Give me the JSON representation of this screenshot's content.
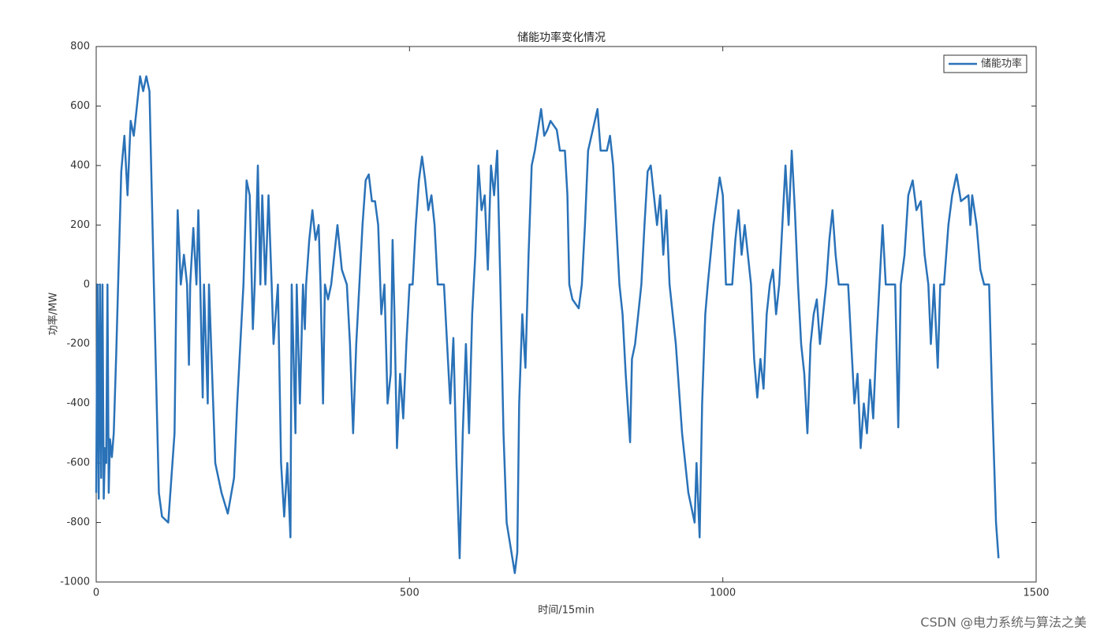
{
  "chart_data": {
    "type": "line",
    "title": "储能功率变化情况",
    "xlabel": "时间/15min",
    "ylabel": "功率/MW",
    "xlim": [
      0,
      1500
    ],
    "xticks": [
      0,
      500,
      1000,
      1500
    ],
    "ylim": [
      -1000,
      800
    ],
    "yticks": [
      -1000,
      -800,
      -600,
      -400,
      -200,
      0,
      200,
      400,
      600,
      800
    ],
    "legend": "top-right",
    "watermark": "CSDN @电力系统与算法之美",
    "series": [
      {
        "name": "储能功率",
        "color": "#2a72b8",
        "x": [
          0,
          2,
          4,
          6,
          8,
          10,
          12,
          14,
          16,
          18,
          20,
          22,
          25,
          28,
          32,
          35,
          40,
          45,
          50,
          55,
          60,
          65,
          70,
          75,
          80,
          85,
          92,
          100,
          105,
          115,
          125,
          128,
          130,
          135,
          140,
          145,
          148,
          150,
          155,
          160,
          163,
          166,
          170,
          172,
          178,
          180,
          190,
          200,
          210,
          220,
          225,
          235,
          240,
          245,
          250,
          253,
          258,
          262,
          265,
          270,
          275,
          280,
          283,
          290,
          295,
          300,
          305,
          310,
          312,
          318,
          320,
          325,
          330,
          333,
          335,
          340,
          345,
          350,
          355,
          358,
          362,
          365,
          370,
          375,
          380,
          385,
          392,
          400,
          405,
          410,
          415,
          420,
          425,
          430,
          435,
          440,
          445,
          450,
          455,
          460,
          465,
          470,
          473,
          476,
          480,
          485,
          490,
          495,
          500,
          505,
          510,
          515,
          520,
          525,
          530,
          535,
          540,
          545,
          555,
          560,
          565,
          570,
          575,
          580,
          585,
          590,
          595,
          600,
          605,
          610,
          615,
          620,
          625,
          630,
          635,
          640,
          645,
          650,
          655,
          668,
          672,
          675,
          680,
          685,
          690,
          695,
          700,
          710,
          715,
          720,
          725,
          735,
          740,
          748,
          752,
          755,
          760,
          770,
          775,
          780,
          785,
          800,
          805,
          815,
          820,
          825,
          830,
          835,
          840,
          845,
          852,
          855,
          860,
          865,
          870,
          875,
          880,
          885,
          890,
          895,
          900,
          905,
          910,
          915,
          925,
          935,
          945,
          955,
          958,
          963,
          967,
          972,
          976,
          985,
          995,
          1000,
          1005,
          1015,
          1020,
          1025,
          1030,
          1035,
          1045,
          1050,
          1055,
          1060,
          1065,
          1070,
          1075,
          1080,
          1085,
          1090,
          1095,
          1100,
          1105,
          1110,
          1115,
          1120,
          1125,
          1130,
          1135,
          1140,
          1145,
          1150,
          1155,
          1165,
          1170,
          1175,
          1180,
          1185,
          1200,
          1205,
          1210,
          1215,
          1220,
          1225,
          1230,
          1235,
          1240,
          1245,
          1250,
          1255,
          1260,
          1275,
          1280,
          1284,
          1290,
          1296,
          1303,
          1309,
          1316,
          1322,
          1328,
          1332,
          1337,
          1343,
          1347,
          1353,
          1360,
          1366,
          1373,
          1380,
          1392,
          1395,
          1398,
          1405,
          1411,
          1417,
          1425,
          1430,
          1436,
          1440
        ],
        "values": [
          -700,
          0,
          -720,
          0,
          -650,
          0,
          -720,
          -550,
          -600,
          0,
          -700,
          -520,
          -580,
          -500,
          -230,
          0,
          380,
          500,
          300,
          550,
          500,
          600,
          700,
          650,
          700,
          650,
          0,
          -700,
          -780,
          -800,
          -500,
          0,
          250,
          0,
          100,
          0,
          -270,
          0,
          190,
          0,
          250,
          0,
          -380,
          0,
          -400,
          0,
          -600,
          -700,
          -770,
          -650,
          -400,
          0,
          350,
          300,
          -150,
          0,
          400,
          0,
          300,
          0,
          300,
          0,
          -200,
          0,
          -600,
          -780,
          -600,
          -850,
          0,
          -500,
          0,
          -400,
          0,
          -150,
          0,
          150,
          250,
          150,
          200,
          0,
          -400,
          0,
          -50,
          0,
          100,
          200,
          50,
          0,
          -200,
          -500,
          -200,
          0,
          200,
          350,
          370,
          280,
          280,
          200,
          -100,
          0,
          -400,
          -300,
          150,
          -100,
          -550,
          -300,
          -450,
          -200,
          0,
          0,
          200,
          350,
          430,
          350,
          250,
          300,
          200,
          0,
          0,
          -200,
          -400,
          -180,
          -600,
          -920,
          -500,
          -200,
          -500,
          -100,
          100,
          400,
          250,
          300,
          50,
          400,
          300,
          450,
          0,
          -500,
          -800,
          -970,
          -900,
          -400,
          -100,
          -280,
          100,
          400,
          450,
          590,
          500,
          520,
          550,
          520,
          450,
          450,
          300,
          0,
          -50,
          -80,
          0,
          200,
          450,
          590,
          450,
          450,
          500,
          400,
          200,
          0,
          -100,
          -300,
          -530,
          -250,
          -200,
          -100,
          0,
          200,
          380,
          400,
          300,
          200,
          300,
          100,
          250,
          0,
          -200,
          -500,
          -700,
          -800,
          -600,
          -850,
          -400,
          -100,
          0,
          200,
          360,
          300,
          0,
          0,
          150,
          250,
          100,
          200,
          0,
          -250,
          -380,
          -250,
          -350,
          -100,
          0,
          50,
          -100,
          0,
          200,
          400,
          200,
          450,
          250,
          0,
          -200,
          -300,
          -500,
          -200,
          -100,
          -50,
          -200,
          0,
          150,
          250,
          100,
          0,
          0,
          -200,
          -400,
          -300,
          -550,
          -400,
          -500,
          -320,
          -450,
          -200,
          0,
          200,
          0,
          0,
          -480,
          0,
          100,
          300,
          350,
          250,
          280,
          100,
          0,
          -200,
          0,
          -280,
          0,
          0,
          200,
          300,
          370,
          280,
          300,
          200,
          300,
          200,
          50,
          0,
          0,
          -400,
          -800,
          -920
        ]
      }
    ]
  }
}
